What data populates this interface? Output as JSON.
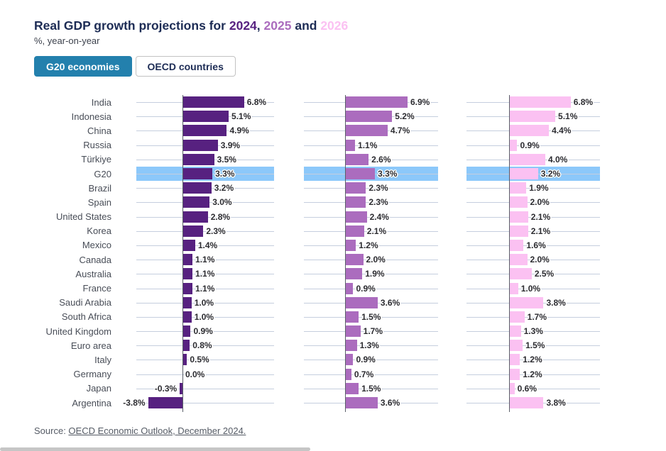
{
  "header": {
    "title_prefix": "Real GDP growth projections for ",
    "sep1": ", ",
    "sep2": " and ",
    "years": [
      {
        "label": "2024",
        "color": "#572180"
      },
      {
        "label": "2025",
        "color": "#ab6cbe"
      },
      {
        "label": "2026",
        "color": "#fbc1f2"
      }
    ],
    "subtitle": "%, year-on-year"
  },
  "toggle": {
    "active_label": "G20 economies",
    "inactive_label": "OECD countries",
    "active_bg_color": "#2380ad"
  },
  "chart_data": {
    "type": "bar",
    "orientation": "horizontal",
    "facets": [
      "2024",
      "2025",
      "2026"
    ],
    "categories": [
      "India",
      "Indonesia",
      "China",
      "Russia",
      "Türkiye",
      "G20",
      "Brazil",
      "Spain",
      "United States",
      "Korea",
      "Mexico",
      "Canada",
      "Australia",
      "France",
      "Saudi Arabia",
      "South Africa",
      "United Kingdom",
      "Euro area",
      "Italy",
      "Germany",
      "Japan",
      "Argentina"
    ],
    "series": [
      {
        "name": "2024",
        "color": "#572180",
        "values": [
          6.8,
          5.1,
          4.9,
          3.9,
          3.5,
          3.3,
          3.2,
          3.0,
          2.8,
          2.3,
          1.4,
          1.1,
          1.1,
          1.1,
          1.0,
          1.0,
          0.9,
          0.8,
          0.5,
          0.0,
          -0.3,
          -3.8
        ]
      },
      {
        "name": "2025",
        "color": "#ab6cbe",
        "values": [
          6.9,
          5.2,
          4.7,
          1.1,
          2.6,
          3.3,
          2.3,
          2.3,
          2.4,
          2.1,
          1.2,
          2.0,
          1.9,
          0.9,
          3.6,
          1.5,
          1.7,
          1.3,
          0.9,
          0.7,
          1.5,
          3.6
        ]
      },
      {
        "name": "2026",
        "color": "#fbc1f2",
        "values": [
          6.8,
          5.1,
          4.4,
          0.9,
          4.0,
          3.2,
          1.9,
          2.0,
          2.1,
          2.1,
          1.6,
          2.0,
          2.5,
          1.0,
          3.8,
          1.7,
          1.3,
          1.5,
          1.2,
          1.2,
          0.6,
          3.8
        ]
      }
    ],
    "value_format": "one_decimal_percent",
    "highlight_category": "G20",
    "highlight_color": "#8cc8fa",
    "gridline_color": "#c5cede",
    "axis_color": "#5a5f68",
    "xlim": [
      -4,
      7
    ],
    "grid": "per-row horizontal lines",
    "legend_position": "none (years encoded in title colors)"
  },
  "source": {
    "prefix": "Source: ",
    "link_text": "OECD Economic Outlook, December 2024."
  }
}
